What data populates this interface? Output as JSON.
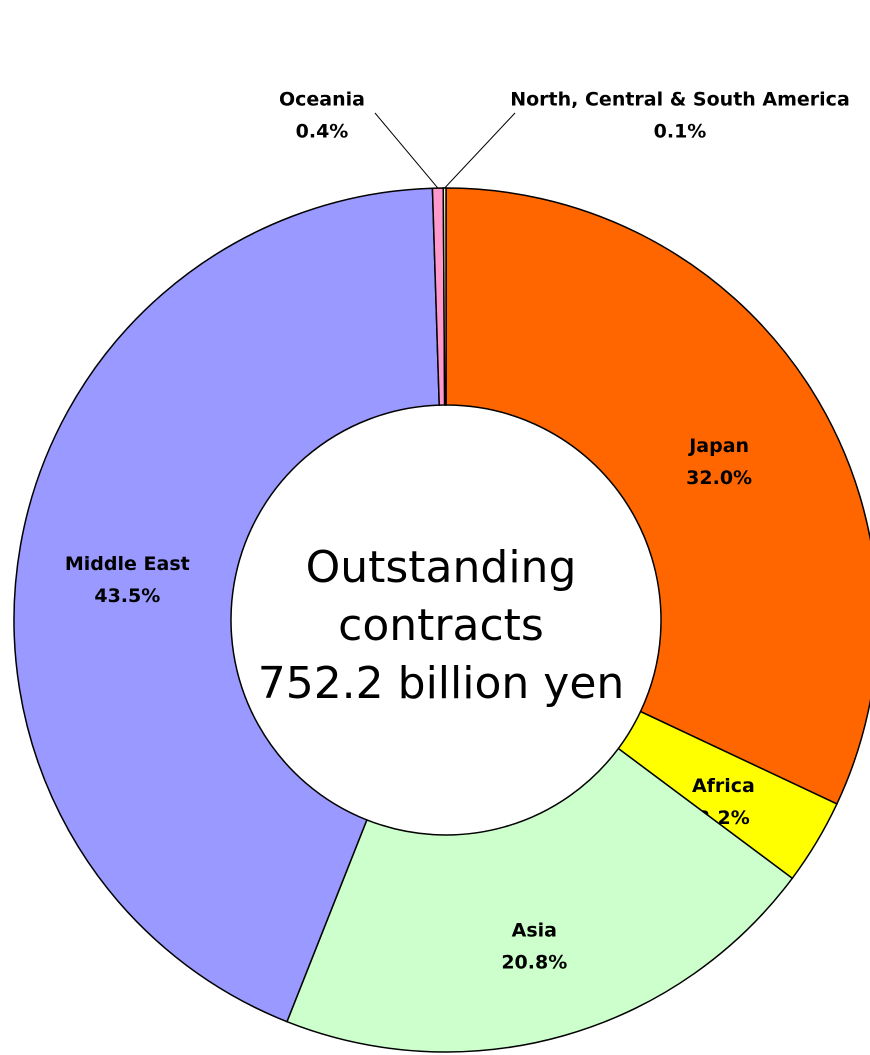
{
  "chart_data": {
    "type": "donut",
    "center_label": [
      "Outstanding",
      "contracts",
      "752.2 billion yen"
    ],
    "categories": [
      "Japan",
      "Africa",
      "Asia",
      "Middle East",
      "Oceania",
      "North, Central & South America"
    ],
    "values": [
      32.0,
      3.2,
      20.8,
      43.5,
      0.4,
      0.1
    ],
    "value_labels": [
      "32.0%",
      "3.2%",
      "20.8%",
      "43.5%",
      "0.4%",
      "0.1%"
    ],
    "colors": [
      "#ff6600",
      "#ffff00",
      "#ccffcc",
      "#9999ff",
      "#ff99cc",
      "#ffffcc"
    ]
  }
}
